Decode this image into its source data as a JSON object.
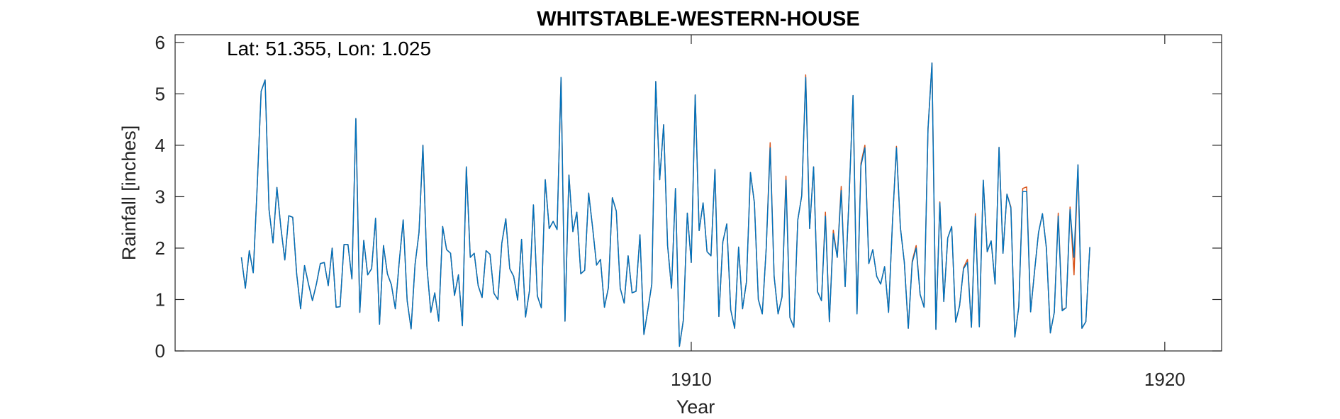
{
  "chart_data": {
    "type": "line",
    "title": "WHITSTABLE-WESTERN-HOUSE",
    "annotation": "Lat: 51.355, Lon: 1.025",
    "xlabel": "Year",
    "ylabel": "Rainfall [inches]",
    "xlim": [
      1899.1,
      1921.2
    ],
    "ylim": [
      0,
      6.15
    ],
    "xticks": [
      1910,
      1920
    ],
    "xtick_labels": [
      "1910",
      "1920"
    ],
    "yticks": [
      0,
      1,
      2,
      3,
      4,
      5,
      6
    ],
    "ytick_labels": [
      "0",
      "1",
      "2",
      "3",
      "4",
      "5",
      "6"
    ],
    "grid": false,
    "legend": "none",
    "x_start": 1900.5,
    "x_step_months": 1,
    "series": [
      {
        "color": "#D95319",
        "values": [
          1.82,
          1.22,
          1.95,
          1.52,
          3.2,
          5.05,
          5.27,
          2.75,
          2.1,
          3.18,
          2.4,
          1.77,
          2.63,
          2.6,
          1.5,
          0.82,
          1.66,
          1.3,
          0.98,
          1.3,
          1.7,
          1.72,
          1.27,
          2.0,
          0.85,
          0.86,
          2.07,
          2.07,
          1.4,
          4.52,
          0.75,
          2.15,
          1.48,
          1.6,
          2.58,
          0.52,
          2.05,
          1.5,
          1.29,
          0.82,
          1.74,
          2.55,
          0.98,
          0.43,
          1.68,
          2.3,
          4.0,
          1.65,
          0.75,
          1.13,
          0.58,
          2.42,
          1.97,
          1.9,
          1.08,
          1.48,
          0.49,
          3.58,
          1.82,
          1.9,
          1.27,
          1.04,
          1.95,
          1.88,
          1.12,
          1.0,
          2.1,
          2.57,
          1.6,
          1.45,
          0.99,
          2.17,
          0.66,
          1.17,
          2.84,
          1.07,
          0.84,
          3.33,
          2.38,
          2.52,
          2.36,
          5.32,
          0.58,
          3.42,
          2.32,
          2.7,
          1.5,
          1.57,
          3.07,
          2.4,
          1.67,
          1.78,
          0.85,
          1.23,
          2.98,
          2.72,
          1.22,
          0.93,
          1.85,
          1.13,
          1.16,
          2.26,
          0.32,
          0.8,
          1.3,
          5.24,
          3.33,
          4.4,
          2.05,
          1.22,
          3.16,
          0.09,
          0.6,
          2.68,
          1.72,
          4.98,
          2.34,
          2.88,
          1.93,
          1.85,
          3.53,
          0.67,
          2.12,
          2.47,
          0.8,
          0.44,
          2.02,
          0.82,
          1.35,
          3.47,
          2.88,
          1.0,
          0.72,
          2.0,
          4.05,
          1.45,
          0.72,
          1.05,
          3.4,
          0.65,
          0.46,
          2.55,
          3.02,
          5.37,
          2.38,
          3.58,
          1.15,
          0.98,
          2.7,
          0.57,
          2.35,
          1.82,
          3.2,
          1.25,
          3.0,
          4.97,
          0.72,
          3.65,
          4.0,
          1.7,
          1.97,
          1.45,
          1.3,
          1.64,
          0.75,
          2.52,
          3.98,
          2.4,
          1.72,
          0.44,
          1.75,
          2.05,
          1.1,
          0.85,
          4.32,
          5.6,
          0.42,
          2.9,
          0.96,
          2.2,
          2.42,
          0.56,
          0.88,
          1.62,
          1.78,
          0.46,
          2.67,
          0.47,
          3.32,
          1.93,
          2.14,
          1.3,
          3.96,
          1.9,
          3.05,
          2.8,
          0.27,
          0.86,
          3.16,
          3.19,
          0.76,
          1.55,
          2.3,
          2.67,
          2.0,
          0.35,
          0.75,
          2.68,
          0.8,
          0.84,
          2.8,
          1.48,
          3.62,
          0.44,
          0.57,
          2.02
        ]
      },
      {
        "color": "#0072BD",
        "values": [
          1.82,
          1.22,
          1.95,
          1.52,
          3.2,
          5.05,
          5.27,
          2.75,
          2.1,
          3.18,
          2.4,
          1.77,
          2.63,
          2.6,
          1.5,
          0.82,
          1.66,
          1.3,
          0.98,
          1.3,
          1.7,
          1.72,
          1.27,
          2.0,
          0.85,
          0.86,
          2.07,
          2.07,
          1.4,
          4.52,
          0.75,
          2.15,
          1.48,
          1.6,
          2.58,
          0.52,
          2.05,
          1.5,
          1.29,
          0.82,
          1.74,
          2.55,
          0.98,
          0.43,
          1.68,
          2.3,
          4.0,
          1.65,
          0.75,
          1.13,
          0.58,
          2.42,
          1.97,
          1.9,
          1.08,
          1.48,
          0.49,
          3.58,
          1.82,
          1.9,
          1.27,
          1.04,
          1.95,
          1.88,
          1.12,
          1.0,
          2.1,
          2.57,
          1.6,
          1.45,
          0.99,
          2.17,
          0.66,
          1.17,
          2.84,
          1.07,
          0.84,
          3.33,
          2.38,
          2.52,
          2.36,
          5.32,
          0.58,
          3.42,
          2.32,
          2.7,
          1.5,
          1.57,
          3.07,
          2.4,
          1.67,
          1.78,
          0.85,
          1.23,
          2.98,
          2.72,
          1.22,
          0.93,
          1.85,
          1.13,
          1.16,
          2.26,
          0.32,
          0.8,
          1.3,
          5.24,
          3.33,
          4.4,
          2.05,
          1.22,
          3.16,
          0.09,
          0.6,
          2.68,
          1.72,
          4.98,
          2.34,
          2.88,
          1.93,
          1.85,
          3.53,
          0.67,
          2.12,
          2.47,
          0.8,
          0.44,
          2.02,
          0.82,
          1.35,
          3.47,
          2.88,
          1.0,
          0.72,
          2.0,
          3.95,
          1.45,
          0.72,
          1.05,
          3.32,
          0.65,
          0.46,
          2.55,
          3.02,
          5.32,
          2.38,
          3.58,
          1.15,
          0.98,
          2.62,
          0.57,
          2.28,
          1.82,
          3.12,
          1.25,
          3.0,
          4.97,
          0.72,
          3.6,
          3.95,
          1.7,
          1.97,
          1.45,
          1.3,
          1.64,
          0.75,
          2.52,
          3.95,
          2.4,
          1.72,
          0.44,
          1.72,
          2.0,
          1.1,
          0.85,
          4.32,
          5.6,
          0.42,
          2.88,
          0.96,
          2.2,
          2.42,
          0.56,
          0.88,
          1.6,
          1.72,
          0.46,
          2.62,
          0.47,
          3.32,
          1.93,
          2.14,
          1.3,
          3.96,
          1.9,
          3.05,
          2.78,
          0.27,
          0.86,
          3.1,
          3.1,
          0.76,
          1.55,
          2.3,
          2.67,
          2.0,
          0.35,
          0.75,
          2.62,
          0.78,
          0.84,
          2.75,
          1.82,
          3.62,
          0.44,
          0.57,
          2.02
        ]
      }
    ]
  }
}
